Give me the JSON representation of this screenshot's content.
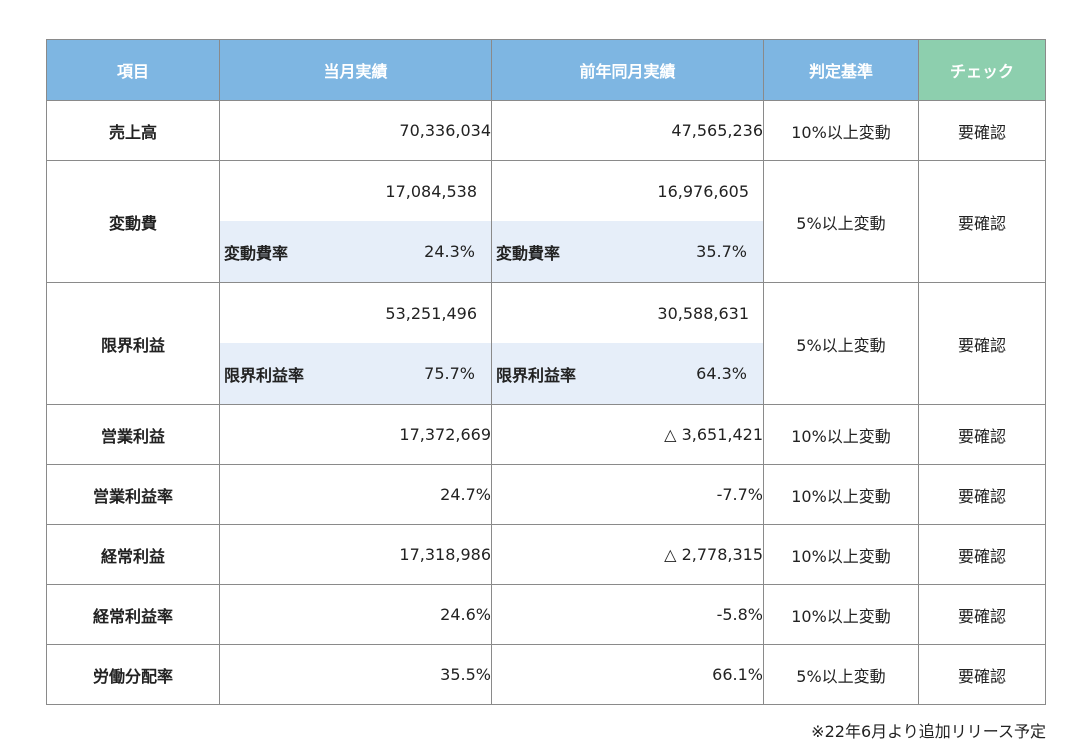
{
  "header": {
    "item": "項目",
    "current": "当月実績",
    "previous": "前年同月実績",
    "criteria": "判定基準",
    "check": "チェック"
  },
  "rows": [
    {
      "item": "売上高",
      "current": "70,336,034",
      "previous": "47,565,236",
      "criteria": "10%以上変動",
      "check": "要確認"
    },
    {
      "item": "変動費",
      "current": "17,084,538",
      "previous": "16,976,605",
      "sub_label": "変動費率",
      "current_rate": "24.3%",
      "previous_rate": "35.7%",
      "criteria": "5%以上変動",
      "check": "要確認"
    },
    {
      "item": "限界利益",
      "current": "53,251,496",
      "previous": "30,588,631",
      "sub_label": "限界利益率",
      "current_rate": "75.7%",
      "previous_rate": "64.3%",
      "criteria": "5%以上変動",
      "check": "要確認"
    },
    {
      "item": "営業利益",
      "current": "17,372,669",
      "previous": "△ 3,651,421",
      "criteria": "10%以上変動",
      "check": "要確認"
    },
    {
      "item": "営業利益率",
      "current": "24.7%",
      "previous": "-7.7%",
      "criteria": "10%以上変動",
      "check": "要確認"
    },
    {
      "item": "経常利益",
      "current": "17,318,986",
      "previous": "△ 2,778,315",
      "criteria": "10%以上変動",
      "check": "要確認"
    },
    {
      "item": "経常利益率",
      "current": "24.6%",
      "previous": "-5.8%",
      "criteria": "10%以上変動",
      "check": "要確認"
    },
    {
      "item": "労働分配率",
      "current": "35.5%",
      "previous": "66.1%",
      "criteria": "5%以上変動",
      "check": "要確認"
    }
  ],
  "footnote": "※22年6月より追加リリース予定",
  "colors": {
    "header_blue": "#7eb6e2",
    "header_green": "#8dcfae",
    "sub_row_bg": "#e6eef9"
  }
}
